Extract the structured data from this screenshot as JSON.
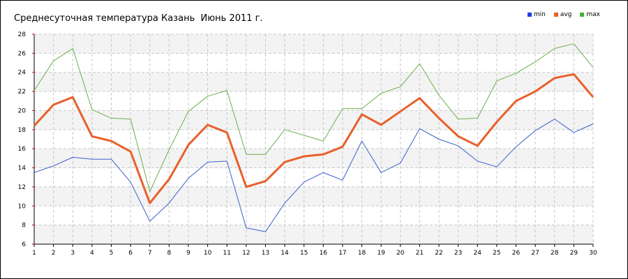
{
  "chart_data": {
    "type": "line",
    "title": "Среднесуточная температура Казань  Июнь 2011 г.",
    "xlabel": "",
    "ylabel": "",
    "x": [
      1,
      2,
      3,
      4,
      5,
      6,
      7,
      8,
      9,
      10,
      11,
      12,
      13,
      14,
      15,
      16,
      17,
      18,
      19,
      20,
      21,
      22,
      23,
      24,
      25,
      26,
      27,
      28,
      29,
      30
    ],
    "xlim": [
      1,
      30
    ],
    "ylim": [
      6,
      28
    ],
    "yticks": [
      6,
      8,
      10,
      12,
      14,
      16,
      18,
      20,
      22,
      24,
      26,
      28
    ],
    "grid": true,
    "legend_position": "top-right",
    "series": [
      {
        "name": "min",
        "color": "#3a5fcd",
        "values": [
          13.5,
          14.2,
          15.1,
          14.9,
          14.9,
          12.5,
          8.4,
          10.3,
          12.9,
          14.6,
          14.7,
          7.7,
          7.3,
          10.3,
          12.5,
          13.5,
          12.7,
          16.8,
          13.5,
          14.5,
          18.1,
          17.0,
          16.3,
          14.7,
          14.1,
          16.2,
          17.9,
          19.1,
          17.7,
          18.6
        ]
      },
      {
        "name": "avg",
        "color": "#e8602a",
        "values": [
          18.4,
          20.6,
          21.4,
          17.3,
          16.8,
          15.7,
          10.3,
          12.8,
          16.4,
          18.5,
          17.7,
          12.0,
          12.6,
          14.6,
          15.2,
          15.4,
          16.2,
          19.6,
          18.5,
          19.9,
          21.3,
          19.2,
          17.3,
          16.3,
          18.8,
          21.0,
          22.0,
          23.4,
          23.8,
          21.4
        ]
      },
      {
        "name": "max",
        "color": "#6ab04c",
        "values": [
          22.1,
          25.2,
          26.5,
          20.1,
          19.2,
          19.1,
          11.5,
          15.9,
          19.9,
          21.5,
          22.1,
          15.4,
          15.4,
          18.0,
          17.4,
          16.8,
          20.2,
          20.2,
          21.8,
          22.5,
          24.9,
          21.6,
          19.1,
          19.2,
          23.1,
          23.9,
          25.1,
          26.5,
          27.0,
          24.5
        ]
      }
    ]
  }
}
